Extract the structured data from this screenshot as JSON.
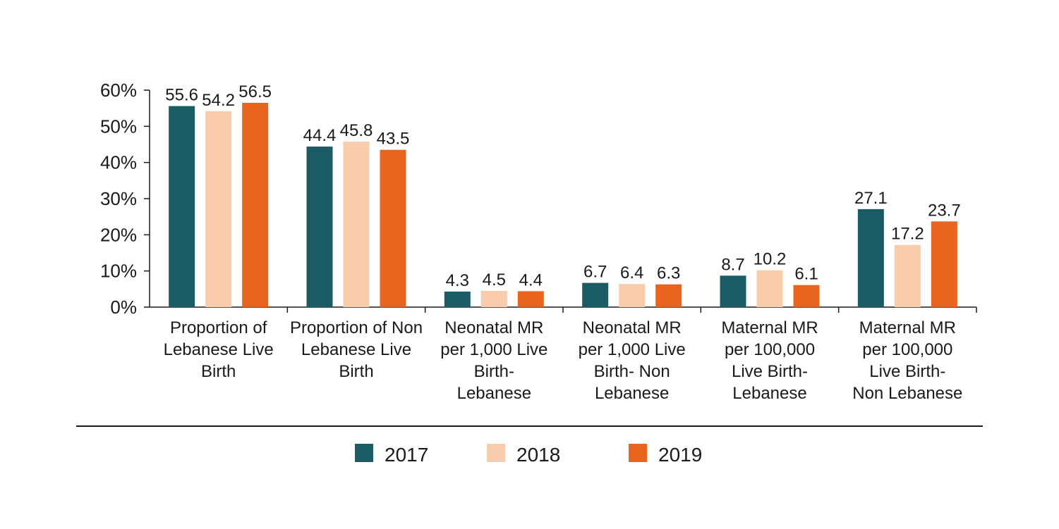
{
  "chart_data": {
    "type": "bar",
    "title": "",
    "xlabel": "",
    "ylabel": "",
    "ylim": [
      0,
      60
    ],
    "y_ticks": [
      "0%",
      "10%",
      "20%",
      "30%",
      "40%",
      "50%",
      "60%"
    ],
    "categories": [
      [
        "Proportion of",
        "Lebanese Live",
        "Birth"
      ],
      [
        "Proportion of Non",
        "Lebanese Live",
        "Birth"
      ],
      [
        "Neonatal MR",
        "per 1,000 Live",
        "Birth-",
        "Lebanese"
      ],
      [
        "Neonatal MR",
        "per 1,000 Live",
        "Birth- Non",
        "Lebanese"
      ],
      [
        "Maternal MR",
        "per 100,000",
        "Live Birth-",
        "Lebanese"
      ],
      [
        "Maternal MR",
        "per 100,000",
        "Live Birth-",
        "Non Lebanese"
      ]
    ],
    "series": [
      {
        "name": "2017",
        "color": "#1b5b63",
        "values": [
          55.6,
          44.4,
          4.3,
          6.7,
          8.7,
          27.1
        ]
      },
      {
        "name": "2018",
        "color": "#f9cdac",
        "values": [
          54.2,
          45.8,
          4.5,
          6.4,
          10.2,
          17.2
        ]
      },
      {
        "name": "2019",
        "color": "#e8641f",
        "values": [
          56.5,
          43.5,
          4.4,
          6.3,
          6.1,
          23.7
        ]
      }
    ],
    "legend_position": "bottom"
  }
}
